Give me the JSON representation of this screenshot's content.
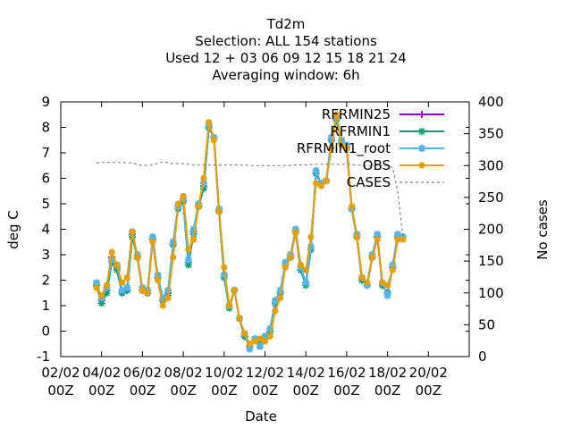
{
  "chart_data": {
    "type": "line",
    "title_lines": [
      "Td2m",
      "Selection: ALL    154 stations",
      "Used  12 + 03 06 09 12 15 18 21 24",
      "Averaging window:  6h"
    ],
    "xlabel": "Date",
    "ylabel": "deg C",
    "y2label": "No cases",
    "xlim": [
      0,
      240
    ],
    "ylim": [
      -1,
      9
    ],
    "y2lim": [
      0,
      400
    ],
    "x_ticks": [
      {
        "x": 0,
        "line1": "02/02",
        "line2": "00Z"
      },
      {
        "x": 24,
        "line1": "04/02",
        "line2": "00Z"
      },
      {
        "x": 48,
        "line1": "06/02",
        "line2": "00Z"
      },
      {
        "x": 72,
        "line1": "08/02",
        "line2": "00Z"
      },
      {
        "x": 96,
        "line1": "10/02",
        "line2": "00Z"
      },
      {
        "x": 120,
        "line1": "12/02",
        "line2": "00Z"
      },
      {
        "x": 144,
        "line1": "14/02",
        "line2": "00Z"
      },
      {
        "x": 168,
        "line1": "16/02",
        "line2": "00Z"
      },
      {
        "x": 192,
        "line1": "18/02",
        "line2": "00Z"
      },
      {
        "x": 216,
        "line1": "20/02",
        "line2": "00Z"
      }
    ],
    "y_ticks": [
      "-1",
      "0",
      "1",
      "2",
      "3",
      "4",
      "5",
      "6",
      "7",
      "8",
      "9"
    ],
    "y2_ticks": [
      "0",
      "50",
      "100",
      "150",
      "200",
      "250",
      "300",
      "350",
      "400"
    ],
    "x": [
      21,
      24,
      27,
      30,
      33,
      36,
      39,
      42,
      45,
      48,
      51,
      54,
      57,
      60,
      63,
      66,
      69,
      72,
      75,
      78,
      81,
      84,
      87,
      90,
      93,
      96,
      99,
      102,
      105,
      108,
      111,
      114,
      117,
      120,
      123,
      126,
      129,
      132,
      135,
      138,
      141,
      144,
      147,
      150,
      153,
      156,
      159,
      162,
      165,
      168,
      171,
      174,
      177,
      180,
      183,
      186,
      189,
      192,
      195,
      198,
      201
    ],
    "series": [
      {
        "name": "RFRMIN25",
        "color": "#9400d3",
        "marker": "plus",
        "values": [
          1.8,
          1.2,
          1.6,
          2.9,
          2.5,
          1.5,
          1.6,
          3.8,
          2.9,
          1.6,
          1.5,
          3.6,
          2.1,
          1.2,
          1.5,
          3.4,
          4.9,
          5.1,
          2.7,
          3.9,
          4.9,
          5.7,
          8.0,
          7.6,
          4.7,
          2.2,
          1.0,
          1.6,
          0.5,
          -0.2,
          -0.6,
          -0.3,
          -0.5,
          -0.3,
          0.0,
          1.1,
          1.5,
          2.7,
          2.9,
          3.9,
          2.4,
          1.9,
          3.3,
          6.2,
          5.8,
          5.9,
          7.5,
          8.3,
          7.4,
          7.2,
          4.8,
          3.7,
          2.0,
          1.8,
          2.9,
          3.7,
          1.8,
          1.5,
          2.5,
          3.7,
          3.7
        ]
      },
      {
        "name": "RFRMIN1",
        "color": "#009e73",
        "marker": "star",
        "values": [
          1.8,
          1.1,
          1.5,
          2.7,
          2.4,
          1.5,
          1.6,
          3.7,
          2.9,
          1.6,
          1.5,
          3.6,
          2.1,
          1.2,
          1.4,
          3.4,
          4.8,
          5.1,
          2.6,
          3.8,
          4.9,
          5.6,
          8.0,
          7.6,
          4.7,
          2.1,
          0.9,
          1.6,
          0.5,
          -0.2,
          -0.6,
          -0.3,
          -0.5,
          -0.3,
          0.0,
          1.1,
          1.5,
          2.6,
          2.9,
          3.9,
          2.4,
          1.8,
          3.2,
          6.2,
          5.8,
          5.9,
          7.5,
          8.3,
          7.4,
          7.2,
          4.8,
          3.7,
          2.0,
          1.8,
          2.9,
          3.7,
          1.8,
          1.5,
          2.5,
          3.7,
          3.7
        ]
      },
      {
        "name": "RFRMIN1_root",
        "color": "#56b4e9",
        "marker": "cross",
        "values": [
          1.9,
          1.3,
          1.7,
          2.8,
          2.6,
          1.6,
          1.7,
          3.9,
          3.0,
          1.7,
          1.6,
          3.7,
          2.2,
          1.3,
          1.6,
          3.5,
          4.9,
          5.2,
          2.8,
          4.0,
          5.0,
          5.8,
          8.1,
          7.6,
          4.8,
          2.2,
          1.0,
          1.6,
          0.5,
          -0.1,
          -0.7,
          -0.3,
          -0.6,
          -0.2,
          0.1,
          1.2,
          1.6,
          2.7,
          3.0,
          4.0,
          2.5,
          1.9,
          3.3,
          6.3,
          5.8,
          5.9,
          7.6,
          8.4,
          7.5,
          7.3,
          4.8,
          3.8,
          2.1,
          1.8,
          3.0,
          3.8,
          1.9,
          1.4,
          2.6,
          3.8,
          3.7
        ]
      },
      {
        "name": "OBS",
        "color": "#e69f00",
        "marker": "circle",
        "values": [
          1.7,
          1.4,
          1.8,
          3.1,
          2.6,
          1.9,
          2.1,
          3.9,
          2.9,
          1.6,
          1.5,
          3.5,
          2.0,
          1.0,
          1.3,
          2.9,
          5.0,
          5.3,
          3.2,
          3.6,
          4.9,
          6.0,
          8.2,
          7.5,
          4.7,
          2.5,
          1.0,
          1.6,
          0.5,
          -0.1,
          -0.5,
          -0.4,
          -0.3,
          -0.4,
          -0.2,
          0.8,
          1.3,
          2.5,
          2.9,
          3.9,
          2.6,
          2.4,
          3.7,
          5.8,
          5.7,
          5.9,
          7.2,
          8.5,
          7.3,
          7.2,
          4.9,
          3.7,
          2.1,
          1.9,
          2.9,
          3.6,
          1.9,
          1.8,
          2.4,
          3.6,
          3.6
        ]
      },
      {
        "name": "CASES",
        "color": "#808080",
        "marker": "none",
        "axis": "y2",
        "dash": true,
        "x": [
          21,
          24,
          30,
          36,
          42,
          48,
          54,
          60,
          66,
          72,
          78,
          84,
          90,
          96,
          102,
          108,
          114,
          120,
          126,
          132,
          138,
          144,
          150,
          156,
          162,
          168,
          174,
          180,
          186,
          192,
          195,
          198,
          201
        ],
        "values": [
          304,
          305,
          305,
          305,
          304,
          300,
          301,
          306,
          303,
          303,
          301,
          301,
          301,
          301,
          301,
          301,
          300,
          300,
          300,
          300,
          301,
          301,
          302,
          302,
          302,
          302,
          301,
          300,
          300,
          300,
          297,
          260,
          190
        ]
      }
    ],
    "legend_position": "top-right",
    "grid": false
  }
}
